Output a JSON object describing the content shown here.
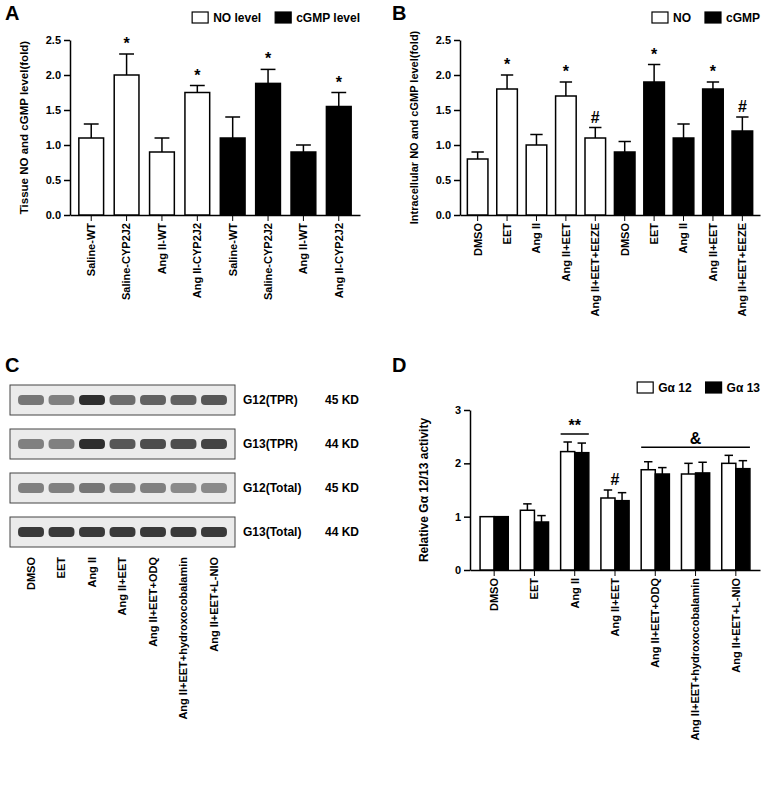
{
  "chart_data": [
    {
      "title": "A",
      "type": "bar",
      "categories": [
        "Saline-WT",
        "Saline-CYP2J2",
        "Ang II-WT",
        "Ang II-CYP2J2",
        "Saline-WT",
        "Saline-CYP2J2",
        "Ang II-WT",
        "Ang II-CYP2J2"
      ],
      "series": [
        {
          "name": "NO level",
          "color": "#ffffff",
          "values": [
            1.1,
            2.0,
            0.9,
            1.75,
            null,
            null,
            null,
            null
          ],
          "errors": [
            0.2,
            0.3,
            0.2,
            0.1,
            null,
            null,
            null,
            null
          ]
        },
        {
          "name": "cGMP level",
          "color": "#000000",
          "values": [
            null,
            null,
            null,
            null,
            1.1,
            1.88,
            0.9,
            1.55
          ],
          "errors": [
            null,
            null,
            null,
            null,
            0.3,
            0.2,
            0.1,
            0.2
          ]
        }
      ],
      "ylabel": "Tissue NO and cGMP level(fold)",
      "ylim": [
        0,
        2.5
      ],
      "yticks": [
        {
          "value": 0,
          "label": "0.0"
        },
        {
          "value": 0.5,
          "label": "0.5"
        },
        {
          "value": 1,
          "label": "1.0"
        },
        {
          "value": 1.5,
          "label": "1.5"
        },
        {
          "value": 2,
          "label": "2.0"
        },
        {
          "value": 2.5,
          "label": "2.5"
        }
      ],
      "legend": "top-right",
      "annotations": [
        {
          "text": "*",
          "series": 0,
          "index": 1
        },
        {
          "text": "*",
          "series": 0,
          "index": 3
        },
        {
          "text": "*",
          "series": 1,
          "index": 5
        },
        {
          "text": "*",
          "series": 1,
          "index": 7
        }
      ]
    },
    {
      "title": "B",
      "type": "bar",
      "categories": [
        "DMSO",
        "EET",
        "Ang II",
        "Ang II+EET",
        "Ang II+EET+EEZE",
        "DMSO",
        "EET",
        "Ang II",
        "Ang II+EET",
        "Ang II+EET+EEZE"
      ],
      "series": [
        {
          "name": "NO",
          "color": "#ffffff",
          "values": [
            0.8,
            1.8,
            1.0,
            1.7,
            1.1,
            null,
            null,
            null,
            null,
            null
          ],
          "errors": [
            0.1,
            0.2,
            0.15,
            0.2,
            0.15,
            null,
            null,
            null,
            null,
            null
          ]
        },
        {
          "name": "cGMP",
          "color": "#000000",
          "values": [
            null,
            null,
            null,
            null,
            null,
            0.9,
            1.9,
            1.1,
            1.8,
            1.2
          ],
          "errors": [
            null,
            null,
            null,
            null,
            null,
            0.15,
            0.25,
            0.2,
            0.1,
            0.2
          ]
        }
      ],
      "ylabel": "Intracellular NO and cGMP level(fold)",
      "ylim": [
        0,
        2.5
      ],
      "yticks": [
        {
          "value": 0,
          "label": "0.0"
        },
        {
          "value": 0.5,
          "label": "0.5"
        },
        {
          "value": 1,
          "label": "1.0"
        },
        {
          "value": 1.5,
          "label": "1.5"
        },
        {
          "value": 2,
          "label": "2.0"
        },
        {
          "value": 2.5,
          "label": "2.5"
        }
      ],
      "legend": "top-right",
      "annotations": [
        {
          "text": "*",
          "series": 0,
          "index": 1
        },
        {
          "text": "*",
          "series": 0,
          "index": 3
        },
        {
          "text": "#",
          "series": 0,
          "index": 4
        },
        {
          "text": "*",
          "series": 1,
          "index": 6
        },
        {
          "text": "*",
          "series": 1,
          "index": 8
        },
        {
          "text": "#",
          "series": 1,
          "index": 9
        }
      ]
    },
    {
      "title": "C",
      "type": "blot",
      "categories": [
        "DMSO",
        "EET",
        "Ang II",
        "Ang II+EET",
        "Ang II+EET+ODQ",
        "Ang II+EET+hydroxocobalamin",
        "Ang II+EET+L-NIO"
      ],
      "rows": [
        {
          "label": "G12(TPR)",
          "size": "45 KD",
          "values": [
            0.55,
            0.5,
            0.9,
            0.6,
            0.65,
            0.65,
            0.7
          ]
        },
        {
          "label": "G13(TPR)",
          "size": "44 KD",
          "values": [
            0.5,
            0.5,
            0.9,
            0.7,
            0.75,
            0.75,
            0.8
          ]
        },
        {
          "label": "G12(Total)",
          "size": "45 KD",
          "values": [
            0.5,
            0.5,
            0.55,
            0.5,
            0.5,
            0.45,
            0.45
          ]
        },
        {
          "label": "G13(Total)",
          "size": "44 KD",
          "values": [
            0.85,
            0.85,
            0.85,
            0.85,
            0.85,
            0.85,
            0.85
          ]
        }
      ]
    },
    {
      "title": "D",
      "type": "bar",
      "categories": [
        "DMSO",
        "EET",
        "Ang II",
        "Ang II+EET",
        "Ang II+EET+ODQ",
        "Ang II+EET+hydroxocobalamin",
        "Ang II+EET+L-NIO"
      ],
      "series": [
        {
          "name": "Gα 12",
          "color": "#ffffff",
          "values": [
            1,
            1.12,
            2.22,
            1.35,
            1.88,
            1.8,
            2.0
          ],
          "errors": [
            null,
            0.12,
            0.18,
            0.15,
            0.15,
            0.2,
            0.15
          ]
        },
        {
          "name": "Gα 13",
          "color": "#000000",
          "values": [
            1,
            0.9,
            2.2,
            1.3,
            1.8,
            1.82,
            1.9
          ],
          "errors": [
            null,
            0.12,
            0.18,
            0.15,
            0.12,
            0.2,
            0.15
          ]
        }
      ],
      "ylabel": "Relative Gα 12/13 activity",
      "ylim": [
        0,
        3
      ],
      "yticks": [
        0,
        1,
        2,
        3
      ],
      "legend": "top-right",
      "annotations": [
        {
          "text": "**",
          "span": [
            2,
            2
          ]
        },
        {
          "text": "#",
          "index": 3
        },
        {
          "text": "&",
          "span": [
            4,
            6
          ]
        }
      ]
    }
  ]
}
